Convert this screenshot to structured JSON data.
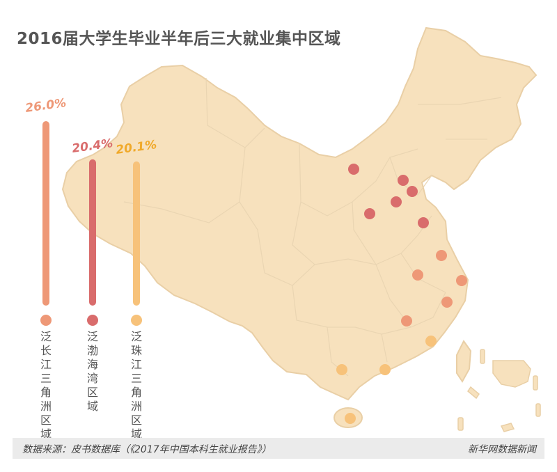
{
  "title": "2016届大学生毕业半年后三大就业集中区域",
  "source": "数据来源：皮书数据库（《2017年中国本科生就业报告》）",
  "brand": "新华网数据新闻",
  "colors": {
    "yangtze": "#ee9877",
    "bohai": "#d96c6c",
    "pearl": "#f7c27a",
    "map_fill": "#f7e1bd",
    "map_border": "#e9cfa6"
  },
  "chart_data": {
    "type": "bar",
    "categories": [
      "泛长江三角洲区域",
      "泛渤海湾区域",
      "泛珠江三角洲区域"
    ],
    "values": [
      26.0,
      20.4,
      20.1
    ],
    "value_labels": [
      "26.0%",
      "20.4%",
      "20.1%"
    ],
    "unit": "%",
    "legend_markers": "city dots on map colored by region"
  }
}
